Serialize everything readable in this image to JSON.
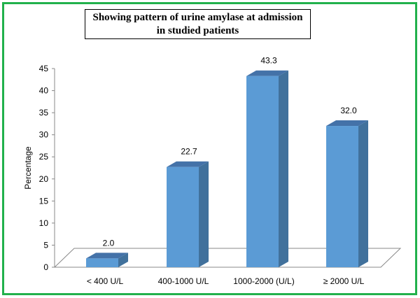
{
  "chart_data": {
    "type": "bar",
    "title": [
      "Showing pattern of urine amylase at admission",
      "in studied patients"
    ],
    "xlabel": "",
    "ylabel": "Percentage",
    "categories": [
      "< 400 U/L",
      "400-1000 U/L",
      "1000-2000 (U/L)",
      "≥ 2000 U/L"
    ],
    "values": [
      2.0,
      22.7,
      43.3,
      32.0
    ],
    "value_labels": [
      "2.0",
      "22.7",
      "43.3",
      "32.0"
    ],
    "ylim": [
      0,
      45
    ],
    "yticks": [
      0,
      5,
      10,
      15,
      20,
      25,
      30,
      35,
      40,
      45
    ],
    "grid": false,
    "legend": "none",
    "colors": {
      "bar_front": "#5b9bd5",
      "bar_side": "#41719c",
      "bar_top": "#4472a8",
      "border": "#22b14c"
    }
  }
}
